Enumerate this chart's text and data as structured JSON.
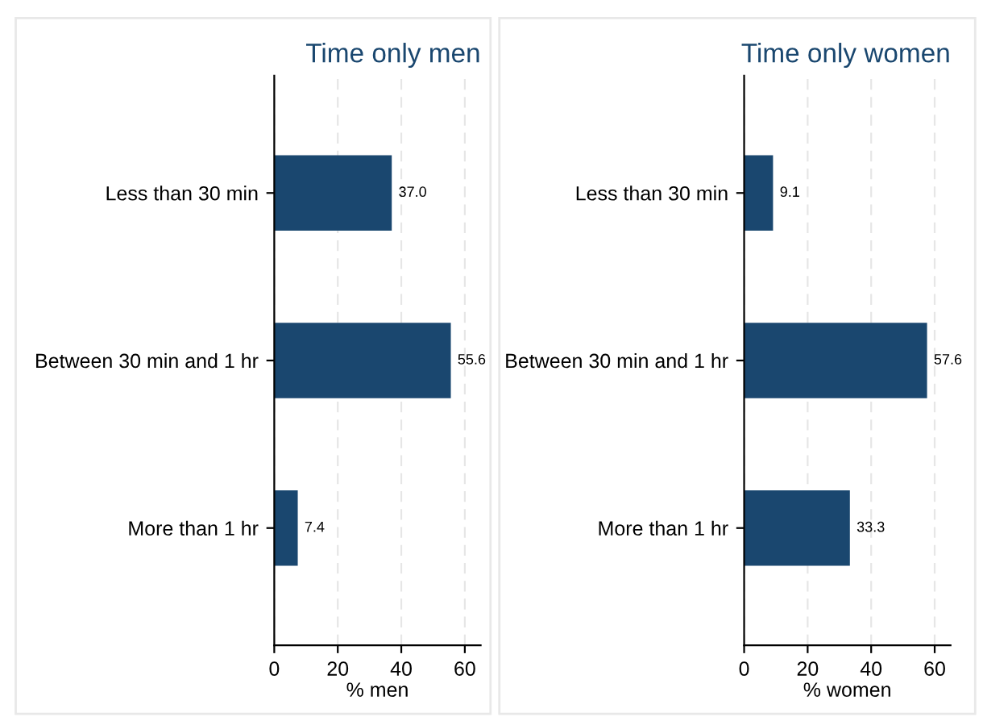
{
  "chart_data": [
    {
      "type": "bar",
      "orientation": "horizontal",
      "title": "Time only men",
      "xlabel": "% men",
      "categories": [
        "Less than 30 min",
        "Between 30 min and 1 hr",
        "More than 1 hr"
      ],
      "values": [
        37.0,
        55.6,
        7.4
      ],
      "value_labels": [
        "37.0",
        "55.6",
        "7.4"
      ],
      "color": "#1a476f",
      "xlim": [
        0,
        65
      ],
      "xticks": [
        0,
        20,
        40,
        60
      ],
      "grid": "x"
    },
    {
      "type": "bar",
      "orientation": "horizontal",
      "title": "Time only women",
      "xlabel": "% women",
      "categories": [
        "Less than 30 min",
        "Between 30 min and 1 hr",
        "More than 1 hr"
      ],
      "values": [
        9.1,
        57.6,
        33.3
      ],
      "value_labels": [
        "9.1",
        "57.6",
        "33.3"
      ],
      "color": "#1a476f",
      "xlim": [
        0,
        65
      ],
      "xticks": [
        0,
        20,
        40,
        60
      ],
      "grid": "x"
    }
  ]
}
